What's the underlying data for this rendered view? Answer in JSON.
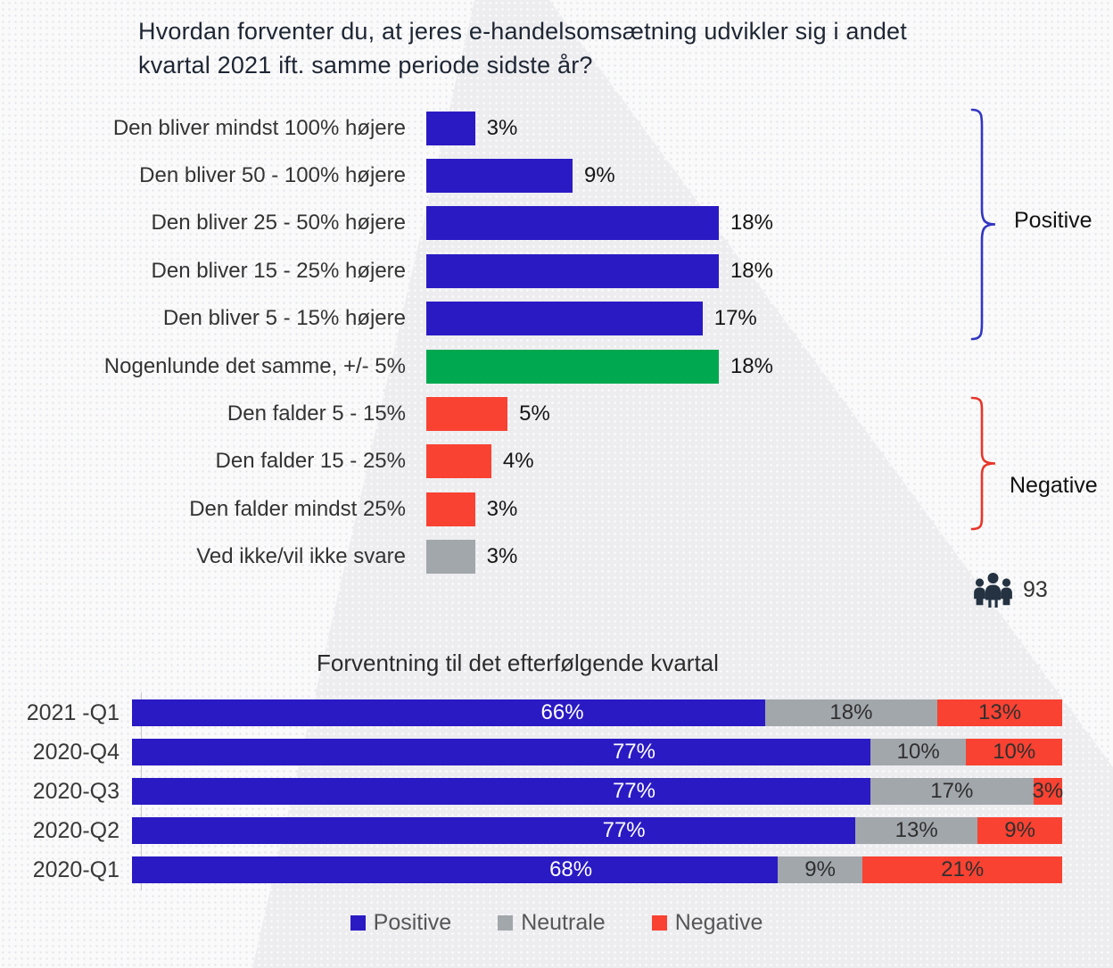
{
  "header": {
    "title_line1": "Hvordan forventer du, at jeres e-handelsomsætning udvikler sig i andet",
    "title_line2": "kvartal 2021 ift. samme periode sidste år?"
  },
  "colors": {
    "positive": "#2a1ac4",
    "neutral_same": "#00a84f",
    "negative": "#f94232",
    "unknown": "#a2a7ac",
    "neutral_gray": "#a2a7ac",
    "bracket_positive": "#3236c2",
    "bracket_negative": "#e6372a",
    "icon_navy": "#243242"
  },
  "annotations": {
    "positive_label": "Positive",
    "negative_label": "Negative"
  },
  "respondents": {
    "count": "93"
  },
  "chart_data": [
    {
      "type": "bar",
      "title": "Hvordan forventer du, at jeres e-handelsomsætning udvikler sig i andet kvartal 2021 ift. samme periode sidste år?",
      "orientation": "horizontal",
      "categories": [
        "Den bliver mindst 100% højere",
        "Den bliver 50 - 100% højere",
        "Den bliver 25 - 50% højere",
        "Den bliver 15 - 25% højere",
        "Den bliver 5 - 15% højere",
        "Nogenlunde det samme, +/- 5%",
        "Den falder 5 - 15%",
        "Den falder 15 - 25%",
        "Den falder mindst 25%",
        "Ved ikke/vil ikke svare"
      ],
      "values": [
        3,
        9,
        18,
        18,
        17,
        18,
        5,
        4,
        3,
        3
      ],
      "labels": [
        "3%",
        "9%",
        "18%",
        "18%",
        "17%",
        "18%",
        "5%",
        "4%",
        "3%",
        "3%"
      ],
      "bar_colors": [
        "positive",
        "positive",
        "positive",
        "positive",
        "positive",
        "neutral_same",
        "negative",
        "negative",
        "negative",
        "unknown"
      ],
      "xlim": [
        0,
        18
      ],
      "grid": false,
      "groups": {
        "positive_rows": [
          0,
          4
        ],
        "negative_rows": [
          6,
          8
        ]
      }
    },
    {
      "type": "stacked-bar",
      "title": "Forventning til det efterfølgende kvartal",
      "orientation": "horizontal",
      "categories": [
        "2021 -Q1",
        "2020-Q4",
        "2020-Q3",
        "2020-Q2",
        "2020-Q1"
      ],
      "series": [
        {
          "name": "Positive",
          "color_key": "positive",
          "values": [
            66,
            77,
            77,
            77,
            68
          ]
        },
        {
          "name": "Neutrale",
          "color_key": "neutral_gray",
          "values": [
            18,
            10,
            17,
            13,
            9
          ]
        },
        {
          "name": "Negative",
          "color_key": "negative",
          "values": [
            13,
            10,
            3,
            9,
            21
          ]
        }
      ],
      "legend": [
        "Positive",
        "Neutrale",
        "Negative"
      ],
      "legend_position": "bottom",
      "normalized_to_full_width": true
    }
  ]
}
